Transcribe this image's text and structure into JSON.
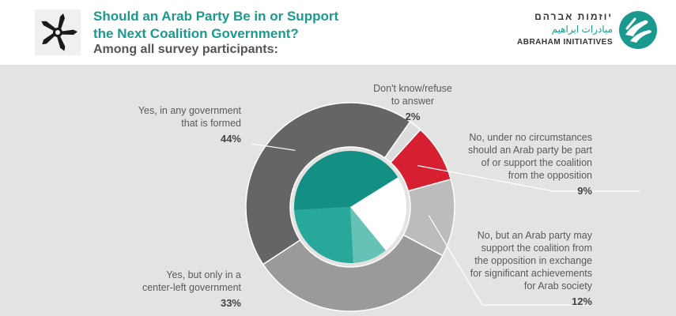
{
  "title_line1": "Should an Arab Party Be in or Support",
  "title_line2": "the Next Coalition Government?",
  "subtitle": "Among all survey participants:",
  "brand": {
    "hebrew": "יוזמות אברהם",
    "arabic": "مبادرات ابراهيم",
    "english": "ABRAHAM INITIATIVES"
  },
  "colors": {
    "teal": "#1a9a8e",
    "background": "#e3e3e1"
  },
  "chart_data": {
    "type": "pie",
    "segments": [
      {
        "label": "Don't know/refuse to answer",
        "label_lines": [
          "Don't know/refuse",
          "to answer"
        ],
        "value": 2,
        "display": "2%",
        "color": "#dcdcdc"
      },
      {
        "label": "No, under no circumstances should an Arab party be part of or support the coalition from the opposition",
        "label_lines": [
          "No, under no circumstances",
          "should an Arab party be part",
          "of or support the coalition",
          "from the opposition"
        ],
        "value": 9,
        "display": "9%",
        "color": "#d61f30"
      },
      {
        "label": "No, but an Arab party may support the coalition from the opposition in exchange for significant achievements for Arab society",
        "label_lines": [
          "No, but an Arab party may",
          "support the coalition from",
          "the opposition in exchange",
          "for significant achievements",
          "for Arab society"
        ],
        "value": 12,
        "display": "12%",
        "color": "#bcbcbc"
      },
      {
        "label": "Yes, but only in a center-left government",
        "label_lines": [
          "Yes, but only in a",
          "center-left government"
        ],
        "value": 33,
        "display": "33%",
        "color": "#9a9a9a"
      },
      {
        "label": "Yes, in any government that is formed",
        "label_lines": [
          "Yes, in any government",
          "that is formed"
        ],
        "value": 44,
        "display": "44%",
        "color": "#656567"
      }
    ],
    "inner_groups": [
      {
        "value": 23,
        "color": "#ffffff"
      },
      {
        "value": 10,
        "color": "#66c1b6"
      },
      {
        "value": 25,
        "color": "#28a89a"
      },
      {
        "value": 42,
        "color": "#138f83"
      }
    ]
  }
}
